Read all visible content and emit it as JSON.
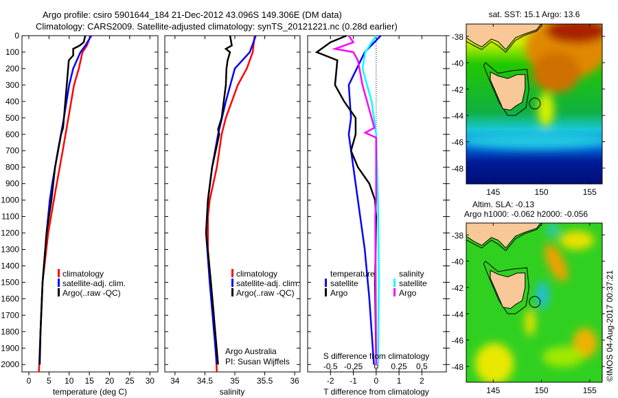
{
  "title": {
    "line1": "Argo profile: csiro 5901644_184 21-Dec-2012 43.096S 149.306E (DM data)",
    "line2": "Climatology: CARS2009. Satellite-adjusted climatology: synTS_20121221.nc (0.28d earlier)"
  },
  "colors": {
    "climatology": "#ff0000",
    "satellite": "#0000ff",
    "argo": "#000000",
    "sal_satellite": "#00ffff",
    "sal_argo": "#ff00ff"
  },
  "chart_data": [
    {
      "type": "line",
      "id": "temperature",
      "xlabel": "temperature (deg C)",
      "ylabel": "depth",
      "xlim": [
        -1.7,
        32
      ],
      "ylim": [
        2045,
        0
      ],
      "xticks": [
        0,
        5,
        10,
        15,
        20,
        25,
        30
      ],
      "yticks": [
        0,
        100,
        200,
        300,
        400,
        500,
        600,
        700,
        800,
        900,
        1000,
        1100,
        1200,
        1300,
        1400,
        1500,
        1600,
        1700,
        1800,
        1900,
        2000
      ],
      "legend": [
        "climatology",
        "satellite-adj. clim.",
        "Argo(..raw -QC)"
      ],
      "legend_position": "lower-center",
      "series": [
        {
          "name": "climatology",
          "color": "#ff0000",
          "points": [
            [
              0,
              15.3
            ],
            [
              60,
              14.4
            ],
            [
              100,
              13.3
            ],
            [
              200,
              12.4
            ],
            [
              300,
              11.2
            ],
            [
              500,
              9.8
            ],
            [
              700,
              8.4
            ],
            [
              1000,
              6.2
            ],
            [
              1200,
              4.8
            ],
            [
              1500,
              3.4
            ],
            [
              1800,
              2.9
            ],
            [
              2045,
              2.5
            ]
          ]
        },
        {
          "name": "satellite-adj. clim.",
          "color": "#0000ff",
          "points": [
            [
              0,
              15.5
            ],
            [
              60,
              14.0
            ],
            [
              100,
              12.8
            ],
            [
              200,
              11.0
            ],
            [
              300,
              10.0
            ],
            [
              500,
              8.7
            ],
            [
              700,
              7.2
            ],
            [
              900,
              5.8
            ],
            [
              1000,
              5.2
            ],
            [
              1200,
              4.4
            ],
            [
              1500,
              3.4
            ],
            [
              1800,
              2.9
            ],
            [
              2000,
              2.6
            ]
          ]
        },
        {
          "name": "Argo(..raw -QC)",
          "color": "#000000",
          "points": [
            [
              0,
              14.0
            ],
            [
              40,
              13.6
            ],
            [
              60,
              12.6
            ],
            [
              80,
              11.0
            ],
            [
              120,
              11.0
            ],
            [
              150,
              9.9
            ],
            [
              300,
              9.4
            ],
            [
              500,
              8.7
            ],
            [
              560,
              8.5
            ],
            [
              600,
              8.0
            ],
            [
              800,
              6.5
            ],
            [
              1000,
              5.6
            ],
            [
              1200,
              4.4
            ],
            [
              1500,
              3.4
            ],
            [
              1800,
              2.9
            ],
            [
              2000,
              2.7
            ]
          ]
        }
      ]
    },
    {
      "type": "line",
      "id": "salinity",
      "xlabel": "salinity",
      "xlim": [
        33.83,
        36.09
      ],
      "ylim": [
        2045,
        0
      ],
      "xticks": [
        34,
        34.5,
        35,
        35.5,
        36
      ],
      "legend": [
        "climatology",
        "satellite-adj. clim.",
        "Argo(..raw -QC)"
      ],
      "annotations": [
        "Argo Australia",
        "PI: Susan Wijffels"
      ],
      "series": [
        {
          "name": "climatology",
          "color": "#ff0000",
          "points": [
            [
              0,
              35.33
            ],
            [
              100,
              35.3
            ],
            [
              200,
              35.2
            ],
            [
              300,
              35.05
            ],
            [
              500,
              34.85
            ],
            [
              600,
              34.78
            ],
            [
              800,
              34.7
            ],
            [
              1000,
              34.58
            ],
            [
              1100,
              34.55
            ],
            [
              1300,
              34.55
            ],
            [
              1500,
              34.6
            ],
            [
              1700,
              34.65
            ],
            [
              2045,
              34.7
            ]
          ]
        },
        {
          "name": "satellite-adj. clim.",
          "color": "#0000ff",
          "points": [
            [
              0,
              35.35
            ],
            [
              100,
              35.25
            ],
            [
              200,
              35.0
            ],
            [
              400,
              34.85
            ],
            [
              600,
              34.72
            ],
            [
              800,
              34.62
            ],
            [
              1000,
              34.55
            ],
            [
              1200,
              34.52
            ],
            [
              1500,
              34.58
            ],
            [
              2000,
              34.7
            ]
          ]
        },
        {
          "name": "Argo(..raw -QC)",
          "color": "#000000",
          "points": [
            [
              0,
              34.92
            ],
            [
              60,
              34.95
            ],
            [
              80,
              34.85
            ],
            [
              100,
              34.92
            ],
            [
              150,
              34.88
            ],
            [
              200,
              34.86
            ],
            [
              300,
              34.85
            ],
            [
              500,
              34.78
            ],
            [
              570,
              34.72
            ],
            [
              600,
              34.74
            ],
            [
              800,
              34.62
            ],
            [
              1000,
              34.55
            ],
            [
              1200,
              34.52
            ],
            [
              1500,
              34.6
            ],
            [
              2000,
              34.72
            ]
          ]
        }
      ]
    },
    {
      "type": "line",
      "id": "difference",
      "xlabel": "T difference from climatology",
      "x2label": "S difference from climatology",
      "xlim": [
        -3,
        3.07
      ],
      "ylim": [
        2045,
        0
      ],
      "xticks": [
        -2,
        -1,
        0,
        1,
        2
      ],
      "x2ticks": [
        -0.5,
        -0.25,
        0,
        0.25,
        0.5
      ],
      "x2_per_x": 0.25,
      "legend_headers": [
        "temperature",
        "salinity"
      ],
      "legend_items": [
        "satellite",
        "Argo",
        "satellite",
        "Argo"
      ],
      "series": [
        {
          "name": "T satellite",
          "color": "#0000ff",
          "axis": "T",
          "points": [
            [
              0,
              0.2
            ],
            [
              100,
              -0.5
            ],
            [
              300,
              -1.2
            ],
            [
              500,
              -1.1
            ],
            [
              600,
              -1.2
            ],
            [
              800,
              -1.0
            ],
            [
              1000,
              -0.8
            ],
            [
              1300,
              -0.5
            ],
            [
              1600,
              -0.3
            ],
            [
              2000,
              -0.1
            ]
          ]
        },
        {
          "name": "T Argo",
          "color": "#000000",
          "axis": "T",
          "points": [
            [
              0,
              -1.3
            ],
            [
              40,
              -2.0
            ],
            [
              100,
              -2.6
            ],
            [
              150,
              -1.7
            ],
            [
              300,
              -1.8
            ],
            [
              400,
              -1.4
            ],
            [
              500,
              -0.9
            ],
            [
              600,
              -0.9
            ],
            [
              700,
              -1.1
            ],
            [
              800,
              -0.8
            ],
            [
              900,
              -0.3
            ],
            [
              1000,
              -0.05
            ],
            [
              1100,
              0
            ],
            [
              1500,
              -0.05
            ],
            [
              2000,
              0
            ]
          ]
        },
        {
          "name": "S satellite",
          "color": "#00ffff",
          "axis": "S",
          "points": [
            [
              0,
              0
            ],
            [
              100,
              -0.12
            ],
            [
              200,
              -0.15
            ],
            [
              400,
              -0.05
            ],
            [
              600,
              0.0
            ],
            [
              1000,
              0.02
            ],
            [
              1500,
              0.03
            ],
            [
              2000,
              0.02
            ]
          ]
        },
        {
          "name": "S Argo",
          "color": "#ff00ff",
          "axis": "S",
          "points": [
            [
              0,
              -0.3
            ],
            [
              40,
              -0.25
            ],
            [
              80,
              -0.45
            ],
            [
              100,
              -0.25
            ],
            [
              150,
              -0.2
            ],
            [
              300,
              -0.15
            ],
            [
              500,
              -0.05
            ],
            [
              560,
              -0.02
            ],
            [
              590,
              -0.12
            ],
            [
              620,
              0.0
            ],
            [
              1000,
              0
            ],
            [
              1100,
              -0.01
            ],
            [
              2000,
              0
            ]
          ]
        }
      ]
    },
    {
      "type": "heatmap",
      "id": "sst-map",
      "title": "sat. SST: 15.1 Argo: 13.6",
      "xlim": [
        142.2,
        156.3
      ],
      "ylim": [
        -49.2,
        -37.06
      ],
      "xticks": [
        145,
        150,
        155
      ],
      "yticks": [
        -38,
        -40,
        -42,
        -44,
        -46,
        -48
      ],
      "float_position": [
        149.306,
        -43.096
      ]
    },
    {
      "type": "heatmap",
      "id": "sla-map",
      "title1": "Altim. SLA: -0.13",
      "title2": "Argo h1000: -0.062 h2000: -0.056",
      "xlim": [
        142.2,
        156.3
      ],
      "ylim": [
        -49.2,
        -37.1
      ],
      "xticks": [
        145,
        150,
        155
      ],
      "yticks": [
        -38,
        -40,
        -42,
        -44,
        -46,
        -48
      ],
      "float_position": [
        149.306,
        -43.096
      ]
    }
  ],
  "credit": "©IMOS 04-Aug-2017 00:37:21"
}
